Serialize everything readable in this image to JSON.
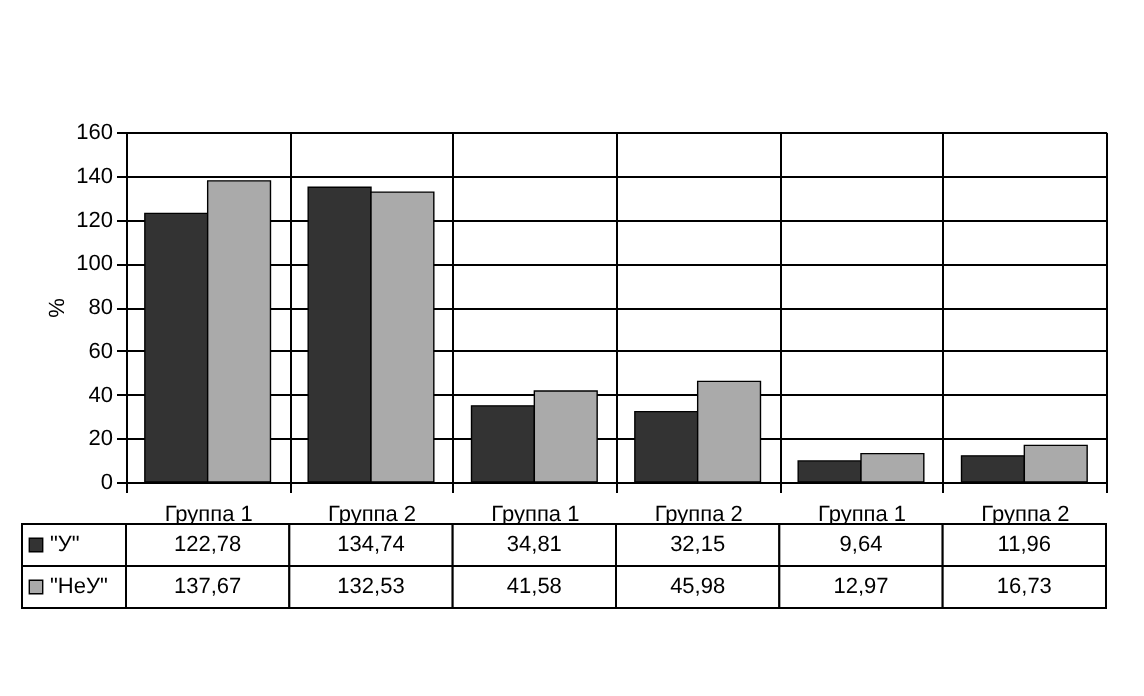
{
  "chart_data": {
    "type": "bar",
    "ylabel": "%",
    "categories": [
      "Группа 1",
      "Группа 2",
      "Группа 1",
      "Группа 2",
      "Группа 1",
      "Группа 2"
    ],
    "series": [
      {
        "name": "\"У\"",
        "color": "#333333",
        "values": [
          122.78,
          134.74,
          34.81,
          32.15,
          9.64,
          11.96
        ],
        "value_labels": [
          "122,78",
          "134,74",
          "34,81",
          "32,15",
          "9,64",
          "11,96"
        ]
      },
      {
        "name": "\"НеУ\"",
        "color": "#aaaaaa",
        "values": [
          137.67,
          132.53,
          41.58,
          45.98,
          12.97,
          16.73
        ],
        "value_labels": [
          "137,67",
          "132,53",
          "41,58",
          "45,98",
          "12,97",
          "16,73"
        ]
      }
    ],
    "ylim": [
      0,
      160
    ],
    "yticks": [
      0,
      20,
      40,
      60,
      80,
      100,
      120,
      140,
      160
    ],
    "grid": "y",
    "legend": "bottom left"
  }
}
